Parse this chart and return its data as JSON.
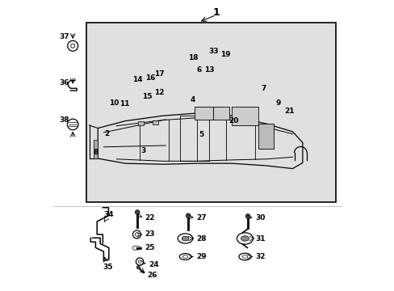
{
  "title": "1",
  "bg_color": "#ffffff",
  "frame_bg": "#e0e0e0",
  "fx": 0.115,
  "fy": 0.305,
  "fw": 0.865,
  "fh": 0.62
}
